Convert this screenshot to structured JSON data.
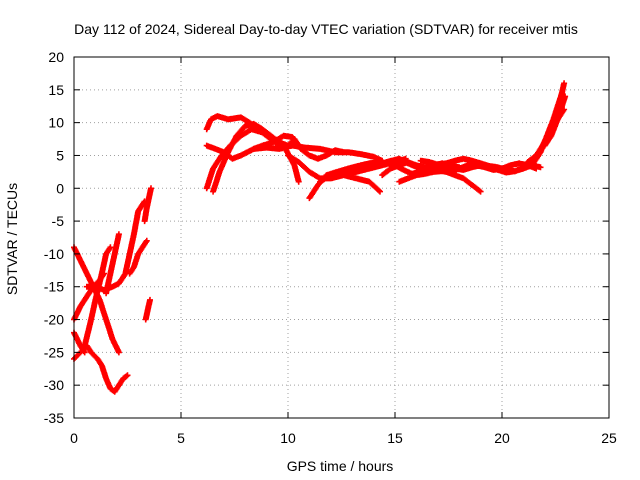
{
  "chart_data": {
    "type": "scatter",
    "title": "Day 112 of 2024, Sidereal Day-to-day VTEC variation (SDTVAR) for receiver mtis",
    "xlabel": "GPS time / hours",
    "ylabel": "SDTVAR / TECUs",
    "xlim": [
      0,
      25
    ],
    "ylim": [
      -35,
      20
    ],
    "xticks": [
      0,
      5,
      10,
      15,
      20,
      25
    ],
    "yticks": [
      -35,
      -30,
      -25,
      -20,
      -15,
      -10,
      -5,
      0,
      5,
      10,
      15,
      20
    ],
    "grid": true,
    "marker": "plus",
    "color": "#ff0000",
    "series": [
      {
        "values": [
          [
            0.0,
            -9
          ],
          [
            0.3,
            -11
          ],
          [
            0.6,
            -13
          ],
          [
            0.9,
            -15
          ],
          [
            1.2,
            -17
          ],
          [
            1.5,
            -20
          ],
          [
            1.8,
            -23
          ],
          [
            2.1,
            -25
          ]
        ]
      },
      {
        "values": [
          [
            0.0,
            -20
          ],
          [
            0.3,
            -18
          ],
          [
            0.6,
            -16.5
          ],
          [
            0.9,
            -15
          ],
          [
            1.2,
            -14
          ],
          [
            1.4,
            -13
          ]
        ]
      },
      {
        "values": [
          [
            0.0,
            -26
          ],
          [
            0.3,
            -25
          ],
          [
            0.6,
            -24
          ],
          [
            0.8,
            -25
          ],
          [
            1.1,
            -26
          ],
          [
            1.3,
            -27
          ],
          [
            1.5,
            -29
          ],
          [
            1.7,
            -30.5
          ],
          [
            1.9,
            -31
          ],
          [
            2.1,
            -30
          ],
          [
            2.3,
            -29
          ],
          [
            2.5,
            -28.5
          ]
        ]
      },
      {
        "values": [
          [
            0.0,
            -22
          ],
          [
            0.3,
            -24
          ],
          [
            0.5,
            -25
          ]
        ]
      },
      {
        "values": [
          [
            0.5,
            -24
          ],
          [
            0.8,
            -20
          ],
          [
            1.0,
            -17
          ],
          [
            1.3,
            -13
          ],
          [
            1.5,
            -10
          ],
          [
            1.7,
            -9
          ]
        ]
      },
      {
        "values": [
          [
            0.6,
            -15
          ],
          [
            1.0,
            -15
          ],
          [
            1.4,
            -15.5
          ],
          [
            1.8,
            -15
          ],
          [
            2.1,
            -14.5
          ],
          [
            2.4,
            -13
          ],
          [
            2.6,
            -10
          ],
          [
            2.8,
            -7
          ],
          [
            3.0,
            -3.5
          ],
          [
            3.3,
            -2
          ]
        ]
      },
      {
        "values": [
          [
            1.5,
            -16
          ],
          [
            1.7,
            -13
          ],
          [
            1.9,
            -10
          ],
          [
            2.1,
            -7
          ]
        ]
      },
      {
        "values": [
          [
            2.6,
            -13
          ],
          [
            2.8,
            -12
          ],
          [
            3.0,
            -10
          ],
          [
            3.2,
            -9
          ],
          [
            3.4,
            -8
          ]
        ]
      },
      {
        "values": [
          [
            3.3,
            -5
          ],
          [
            3.4,
            -3
          ],
          [
            3.5,
            -1.5
          ],
          [
            3.6,
            0
          ]
        ]
      },
      {
        "values": [
          [
            3.35,
            -20
          ],
          [
            3.45,
            -18.5
          ],
          [
            3.55,
            -17
          ]
        ]
      },
      {
        "values": [
          [
            6.2,
            9
          ],
          [
            6.4,
            10.5
          ],
          [
            6.7,
            11
          ],
          [
            7.2,
            10.5
          ],
          [
            7.8,
            10.8
          ],
          [
            8.2,
            10
          ],
          [
            8.8,
            8.5
          ],
          [
            9.2,
            7.5
          ],
          [
            9.6,
            6.5
          ],
          [
            10.0,
            6.5
          ]
        ]
      },
      {
        "values": [
          [
            6.2,
            6.5
          ],
          [
            6.6,
            6
          ],
          [
            7.0,
            5.5
          ],
          [
            7.4,
            4.5
          ],
          [
            7.8,
            5
          ],
          [
            8.4,
            6
          ],
          [
            9.0,
            6.2
          ],
          [
            9.6,
            6
          ],
          [
            10.2,
            6.5
          ],
          [
            10.8,
            6.2
          ],
          [
            11.5,
            6
          ],
          [
            12.2,
            5.5
          ],
          [
            12.8,
            5.5
          ],
          [
            13.4,
            5.2
          ],
          [
            14.0,
            4.8
          ],
          [
            14.4,
            4.2
          ]
        ]
      },
      {
        "values": [
          [
            6.2,
            0
          ],
          [
            6.5,
            3
          ],
          [
            6.9,
            5
          ],
          [
            7.3,
            6.5
          ],
          [
            7.8,
            8
          ],
          [
            8.3,
            9
          ],
          [
            8.8,
            8.5
          ],
          [
            9.3,
            7.5
          ],
          [
            9.8,
            6.5
          ],
          [
            10.3,
            3.5
          ],
          [
            10.5,
            1
          ]
        ]
      },
      {
        "values": [
          [
            6.5,
            -0.5
          ],
          [
            6.8,
            2.5
          ],
          [
            7.2,
            5.5
          ],
          [
            7.6,
            8
          ],
          [
            8.0,
            9.5
          ],
          [
            8.4,
            9.8
          ],
          [
            8.8,
            9
          ],
          [
            9.2,
            8
          ],
          [
            9.6,
            7
          ],
          [
            10.0,
            6.5
          ],
          [
            10.3,
            7.5
          ],
          [
            10.6,
            6
          ],
          [
            11.0,
            5
          ],
          [
            11.4,
            4.5
          ],
          [
            11.8,
            5
          ],
          [
            12.2,
            5.8
          ],
          [
            12.6,
            5.5
          ]
        ]
      },
      {
        "values": [
          [
            8.4,
            6
          ],
          [
            8.8,
            6.5
          ],
          [
            9.3,
            7
          ],
          [
            9.8,
            8
          ],
          [
            10.2,
            7.8
          ],
          [
            10.5,
            6.5
          ]
        ]
      },
      {
        "values": [
          [
            11.0,
            -1.5
          ],
          [
            11.4,
            0.5
          ],
          [
            11.8,
            2
          ],
          [
            12.3,
            2.5
          ],
          [
            12.8,
            3
          ],
          [
            13.4,
            3.5
          ],
          [
            13.8,
            3.8
          ],
          [
            14.3,
            4
          ]
        ]
      },
      {
        "values": [
          [
            11.5,
            1
          ],
          [
            12.0,
            2
          ],
          [
            12.6,
            2.2
          ],
          [
            13.2,
            2.5
          ],
          [
            13.8,
            3
          ],
          [
            14.4,
            3.5
          ],
          [
            15.0,
            4
          ],
          [
            15.5,
            4.5
          ]
        ]
      },
      {
        "values": [
          [
            10.0,
            5
          ],
          [
            10.5,
            4
          ],
          [
            11.0,
            2.5
          ],
          [
            11.5,
            1.5
          ],
          [
            12.0,
            1.5
          ],
          [
            12.6,
            2
          ],
          [
            13.2,
            1.5
          ],
          [
            13.8,
            1
          ],
          [
            14.3,
            -0.5
          ]
        ]
      },
      {
        "values": [
          [
            12.2,
            2
          ],
          [
            12.8,
            2.8
          ],
          [
            13.4,
            3
          ],
          [
            14.0,
            3.2
          ],
          [
            14.6,
            4
          ],
          [
            15.2,
            4.5
          ],
          [
            15.6,
            3.8
          ],
          [
            16.2,
            3
          ],
          [
            16.8,
            2.8
          ]
        ]
      },
      {
        "values": [
          [
            14.4,
            2
          ],
          [
            14.8,
            3
          ],
          [
            15.2,
            3.5
          ],
          [
            15.6,
            4
          ],
          [
            16.0,
            3.5
          ],
          [
            16.4,
            3.2
          ],
          [
            16.8,
            3.5
          ],
          [
            17.2,
            3.8
          ],
          [
            17.6,
            3.5
          ],
          [
            18.0,
            3.2
          ]
        ]
      },
      {
        "values": [
          [
            15.2,
            1
          ],
          [
            15.6,
            1.5
          ],
          [
            16.0,
            2
          ],
          [
            16.4,
            2.2
          ],
          [
            16.8,
            2.5
          ],
          [
            17.2,
            2.6
          ],
          [
            17.6,
            2.4
          ],
          [
            18.0,
            3
          ],
          [
            18.4,
            3.5
          ],
          [
            18.8,
            3.5
          ],
          [
            19.2,
            3.2
          ],
          [
            19.6,
            2.8
          ],
          [
            20.0,
            3
          ],
          [
            20.4,
            3.5
          ],
          [
            20.8,
            3.8
          ],
          [
            21.2,
            3.5
          ],
          [
            21.6,
            3
          ]
        ]
      },
      {
        "values": [
          [
            16.2,
            4.2
          ],
          [
            16.6,
            4
          ],
          [
            17.0,
            3.6
          ],
          [
            17.4,
            3.8
          ],
          [
            17.8,
            4.2
          ],
          [
            18.2,
            4.5
          ],
          [
            18.6,
            4.2
          ],
          [
            19.0,
            3.8
          ],
          [
            19.4,
            3.4
          ],
          [
            19.8,
            3.2
          ],
          [
            20.2,
            2.8
          ],
          [
            20.6,
            2.6
          ],
          [
            21.0,
            3
          ],
          [
            21.4,
            3.5
          ],
          [
            21.8,
            3.2
          ]
        ]
      },
      {
        "values": [
          [
            15.0,
            3.5
          ],
          [
            15.4,
            2.8
          ],
          [
            15.8,
            2.2
          ],
          [
            16.2,
            2.6
          ],
          [
            16.6,
            2.9
          ],
          [
            17.0,
            3
          ],
          [
            17.4,
            3.2
          ],
          [
            17.8,
            3
          ],
          [
            18.2,
            2.8
          ],
          [
            18.6,
            3.2
          ],
          [
            19.0,
            3.5
          ],
          [
            19.4,
            3.2
          ],
          [
            19.8,
            2.8
          ],
          [
            20.2,
            2.4
          ],
          [
            20.6,
            2.6
          ],
          [
            21.0,
            3.2
          ],
          [
            21.4,
            4
          ]
        ]
      },
      {
        "values": [
          [
            17.4,
            2.5
          ],
          [
            17.8,
            2
          ],
          [
            18.2,
            1.5
          ],
          [
            18.6,
            0.5
          ],
          [
            19.0,
            -0.5
          ]
        ]
      },
      {
        "values": [
          [
            21.2,
            4
          ],
          [
            21.6,
            5
          ],
          [
            22.0,
            7
          ],
          [
            22.3,
            9
          ],
          [
            22.5,
            11
          ],
          [
            22.7,
            13
          ],
          [
            22.9,
            16
          ]
        ]
      },
      {
        "values": [
          [
            21.4,
            3.5
          ],
          [
            21.8,
            5.5
          ],
          [
            22.1,
            8
          ],
          [
            22.4,
            10.5
          ],
          [
            22.6,
            12.5
          ],
          [
            22.8,
            14.5
          ]
        ]
      },
      {
        "values": [
          [
            21.6,
            4.5
          ],
          [
            21.9,
            6.5
          ],
          [
            22.2,
            8.5
          ],
          [
            22.5,
            10
          ],
          [
            22.7,
            11
          ],
          [
            22.9,
            12
          ]
        ]
      },
      {
        "values": [
          [
            22.0,
            6.5
          ],
          [
            22.3,
            8
          ],
          [
            22.6,
            10.5
          ],
          [
            22.8,
            12.5
          ],
          [
            22.95,
            14
          ]
        ]
      }
    ]
  }
}
